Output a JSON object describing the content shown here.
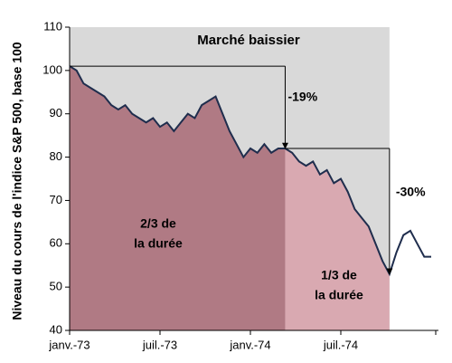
{
  "chart_data": {
    "type": "line",
    "title": "Marché baissier",
    "y_label": "Niveau du cours de l'indice S&P 500, base 100",
    "categories": [
      "janv.-73",
      null,
      null,
      null,
      null,
      null,
      null,
      null,
      null,
      null,
      null,
      null,
      null,
      "juil.-73",
      null,
      null,
      null,
      null,
      null,
      null,
      null,
      null,
      null,
      null,
      null,
      null,
      "janv.-74",
      null,
      null,
      null,
      null,
      null,
      null,
      null,
      null,
      null,
      null,
      null,
      null,
      "juil.-74",
      null,
      null,
      null,
      null,
      null,
      null,
      null,
      null,
      null,
      null,
      null,
      null,
      null
    ],
    "series": [
      {
        "name": "S&P 500",
        "color": "#1f2d4d",
        "values": [
          101,
          100,
          97,
          96,
          95,
          94,
          92,
          91,
          92,
          90,
          89,
          88,
          89,
          87,
          88,
          86,
          88,
          90,
          89,
          92,
          93,
          94,
          90,
          86,
          83,
          80,
          82,
          81,
          83,
          81,
          82,
          82,
          81,
          79,
          78,
          79,
          76,
          77,
          74,
          75,
          72,
          68,
          66,
          64,
          60,
          56,
          53,
          58,
          62,
          63,
          60,
          57,
          57
        ]
      }
    ],
    "ylim": [
      40,
      110
    ],
    "yticks": [
      40,
      50,
      60,
      70,
      80,
      90,
      100,
      110
    ],
    "annotations": [
      "-19%",
      "-30%",
      "2/3 de",
      "la durée",
      "1/3 de",
      "la durée"
    ]
  }
}
